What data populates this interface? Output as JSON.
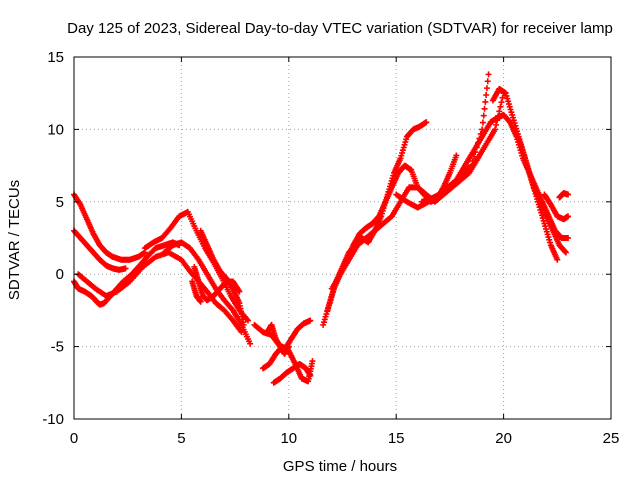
{
  "chart_data": {
    "type": "scatter",
    "title": "Day 125 of 2023, Sidereal Day-to-day VTEC variation (SDTVAR) for receiver lamp",
    "xlabel": "GPS time / hours",
    "ylabel": "SDTVAR / TECUs",
    "xlim": [
      0,
      25
    ],
    "ylim": [
      -10,
      15
    ],
    "xticks": [
      "0",
      "5",
      "10",
      "15",
      "20",
      "25"
    ],
    "yticks": [
      "-10",
      "-5",
      "0",
      "5",
      "10",
      "15"
    ],
    "grid": true,
    "marker": "+",
    "series": [
      {
        "name": "arc-1",
        "color": "#ff0000",
        "x": [
          0.0,
          0.3,
          0.6,
          0.9,
          1.2,
          1.5,
          1.8,
          2.2,
          2.6,
          3.0,
          3.3
        ],
        "y": [
          5.5,
          4.8,
          3.8,
          2.8,
          2.0,
          1.5,
          1.2,
          1.0,
          1.0,
          1.2,
          1.5
        ]
      },
      {
        "name": "arc-2",
        "color": "#ff0000",
        "x": [
          0.0,
          0.3,
          0.6,
          0.9,
          1.2,
          1.5,
          1.8,
          2.1,
          2.4
        ],
        "y": [
          3.0,
          2.5,
          2.0,
          1.5,
          1.0,
          0.6,
          0.4,
          0.3,
          0.4
        ]
      },
      {
        "name": "arc-3",
        "color": "#ff0000",
        "x": [
          0.0,
          0.2,
          0.5,
          0.8,
          1.0,
          1.2,
          1.4,
          1.7,
          2.0,
          2.3,
          2.7,
          3.0,
          3.4,
          3.8,
          4.2,
          4.6,
          4.9
        ],
        "y": [
          -0.5,
          -1.0,
          -1.2,
          -1.5,
          -1.8,
          -2.1,
          -2.0,
          -1.5,
          -1.0,
          -0.5,
          0.0,
          0.5,
          1.2,
          1.8,
          2.0,
          2.2,
          2.0
        ]
      },
      {
        "name": "arc-4",
        "color": "#ff0000",
        "x": [
          0.2,
          0.6,
          1.0,
          1.5,
          2.0,
          2.6,
          3.2,
          3.8,
          4.4,
          5.0,
          5.4,
          5.8,
          6.2,
          6.6,
          7.0,
          7.4,
          7.8
        ],
        "y": [
          0.0,
          -0.5,
          -1.0,
          -1.5,
          -1.2,
          -0.5,
          0.5,
          1.2,
          1.5,
          1.0,
          0.2,
          -0.5,
          -1.2,
          -2.0,
          -2.5,
          -3.2,
          -4.0
        ]
      },
      {
        "name": "arc-5",
        "color": "#ff0000",
        "x": [
          3.3,
          3.7,
          4.1,
          4.5,
          4.9,
          5.3,
          5.7,
          6.1,
          6.5,
          6.9,
          7.3,
          7.7,
          8.1
        ],
        "y": [
          1.8,
          2.2,
          2.5,
          3.2,
          4.0,
          4.3,
          3.0,
          1.8,
          0.8,
          -0.3,
          -1.5,
          -2.5,
          -3.2
        ]
      },
      {
        "name": "arc-6",
        "color": "#ff0000",
        "x": [
          4.2,
          4.6,
          5.0,
          5.4,
          5.8,
          6.2,
          6.6,
          7.0,
          7.4,
          7.8,
          8.2
        ],
        "y": [
          1.5,
          2.0,
          2.2,
          1.8,
          1.0,
          0.0,
          -1.0,
          -1.8,
          -2.5,
          -3.5,
          -4.8
        ]
      },
      {
        "name": "arc-7",
        "color": "#ff0000",
        "x": [
          5.6,
          5.8,
          6.0,
          6.2,
          6.5,
          6.8,
          7.1,
          7.4,
          7.7
        ],
        "y": [
          0.5,
          -0.5,
          -1.5,
          -1.8,
          -1.5,
          -1.0,
          -0.5,
          -0.5,
          -1.2
        ]
      },
      {
        "name": "arc-8",
        "color": "#ff0000",
        "x": [
          5.5,
          5.7,
          5.9
        ],
        "y": [
          -0.5,
          -1.5,
          -1.9
        ]
      },
      {
        "name": "arc-9",
        "color": "#ff0000",
        "x": [
          5.9,
          6.2,
          6.5,
          6.8,
          7.1,
          7.4,
          7.7,
          7.9
        ],
        "y": [
          3.0,
          2.0,
          1.0,
          0.2,
          -0.3,
          -1.0,
          -2.0,
          -3.5
        ]
      },
      {
        "name": "arc-10",
        "color": "#ff0000",
        "x": [
          8.4,
          8.8,
          9.2,
          9.5,
          9.8,
          10.1,
          10.4,
          10.7,
          11.0
        ],
        "y": [
          -3.5,
          -4.0,
          -4.2,
          -4.8,
          -5.2,
          -4.5,
          -3.8,
          -3.4,
          -3.2
        ]
      },
      {
        "name": "arc-11",
        "color": "#ff0000",
        "x": [
          8.8,
          9.1,
          9.4,
          9.7,
          10.0,
          10.3,
          10.6,
          10.9,
          11.1
        ],
        "y": [
          -6.5,
          -6.2,
          -5.5,
          -5.0,
          -5.3,
          -6.2,
          -7.2,
          -7.4,
          -6.0
        ]
      },
      {
        "name": "arc-12",
        "color": "#ff0000",
        "x": [
          9.0,
          9.2,
          9.4,
          9.6,
          9.8,
          10.0
        ],
        "y": [
          -4.0,
          -3.5,
          -4.5,
          -5.0,
          -5.5,
          -5.0
        ]
      },
      {
        "name": "arc-13",
        "color": "#ff0000",
        "x": [
          9.3,
          9.6,
          9.9,
          10.2,
          10.5,
          10.8,
          11.0
        ],
        "y": [
          -7.5,
          -7.2,
          -6.8,
          -6.5,
          -6.2,
          -6.5,
          -7.0
        ]
      },
      {
        "name": "arc-14",
        "color": "#ff0000",
        "x": [
          11.6,
          11.9,
          12.2,
          12.5,
          12.8,
          13.1,
          13.4,
          13.7,
          14.0,
          14.3,
          14.6,
          14.9,
          15.2,
          15.5,
          15.8,
          16.1,
          16.4
        ],
        "y": [
          -3.5,
          -2.0,
          -0.5,
          0.5,
          1.5,
          2.0,
          2.5,
          2.2,
          3.0,
          4.0,
          5.5,
          7.0,
          8.0,
          9.5,
          10.0,
          10.2,
          10.5
        ]
      },
      {
        "name": "arc-15",
        "color": "#ff0000",
        "x": [
          11.8,
          12.1,
          12.4,
          12.7,
          13.0,
          13.3,
          13.6,
          13.9,
          14.2,
          14.5,
          14.8,
          15.1,
          15.4,
          15.7,
          16.0,
          16.3,
          16.6,
          16.9,
          17.2,
          17.5,
          17.8
        ],
        "y": [
          -2.5,
          -1.0,
          0.0,
          1.0,
          2.0,
          2.8,
          3.2,
          3.5,
          4.0,
          5.0,
          6.0,
          7.0,
          7.5,
          7.2,
          6.0,
          5.5,
          5.0,
          5.2,
          6.0,
          7.0,
          8.2
        ]
      },
      {
        "name": "arc-16",
        "color": "#ff0000",
        "x": [
          12.0,
          12.4,
          12.8,
          13.2,
          13.6,
          14.0,
          14.4,
          14.8,
          15.2,
          15.6,
          16.0,
          16.4,
          16.8,
          17.2,
          17.6,
          18.0,
          18.4,
          18.8,
          19.2,
          19.6,
          20.0
        ],
        "y": [
          -1.0,
          0.0,
          1.0,
          2.0,
          2.5,
          3.0,
          3.5,
          4.0,
          5.0,
          6.0,
          6.0,
          5.5,
          5.0,
          5.5,
          6.0,
          6.5,
          7.0,
          8.0,
          9.0,
          10.0,
          12.5
        ]
      },
      {
        "name": "arc-17",
        "color": "#ff0000",
        "x": [
          15.0,
          15.5,
          16.0,
          16.5,
          17.0,
          17.5,
          18.0,
          18.5,
          19.0,
          19.3
        ],
        "y": [
          5.5,
          5.0,
          4.6,
          5.0,
          5.5,
          6.0,
          6.8,
          7.5,
          10.0,
          13.8
        ]
      },
      {
        "name": "arc-18",
        "color": "#ff0000",
        "x": [
          16.2,
          16.6,
          17.0,
          17.4,
          17.8,
          18.2,
          18.6,
          19.0,
          19.4,
          19.7,
          20.0,
          20.3,
          20.6,
          20.9,
          21.2,
          21.5,
          21.8,
          22.1,
          22.4,
          22.7,
          23.0
        ],
        "y": [
          5.0,
          5.2,
          5.5,
          6.0,
          6.5,
          7.5,
          8.5,
          9.5,
          10.5,
          10.8,
          11.0,
          10.5,
          9.5,
          8.0,
          7.0,
          6.0,
          5.0,
          4.0,
          3.0,
          2.5,
          2.5
        ]
      },
      {
        "name": "arc-19",
        "color": "#ff0000",
        "x": [
          19.5,
          19.8,
          20.1,
          20.4,
          20.7,
          21.0,
          21.3,
          21.6,
          21.9,
          22.2,
          22.5
        ],
        "y": [
          12.0,
          12.8,
          12.5,
          11.0,
          9.5,
          8.0,
          6.5,
          5.0,
          3.5,
          2.0,
          1.0
        ]
      },
      {
        "name": "arc-20",
        "color": "#ff0000",
        "x": [
          20.5,
          20.8,
          21.1,
          21.4,
          21.7,
          22.0,
          22.3,
          22.6,
          22.9
        ],
        "y": [
          10.0,
          9.0,
          7.5,
          6.0,
          5.0,
          4.0,
          3.0,
          2.0,
          1.5
        ]
      },
      {
        "name": "arc-21",
        "color": "#ff0000",
        "x": [
          21.9,
          22.2,
          22.5,
          22.8,
          23.0
        ],
        "y": [
          5.5,
          4.8,
          4.0,
          3.8,
          4.0
        ]
      },
      {
        "name": "arc-22",
        "color": "#ff0000",
        "x": [
          22.6,
          22.8,
          23.0
        ],
        "y": [
          5.3,
          5.6,
          5.5
        ]
      }
    ]
  }
}
